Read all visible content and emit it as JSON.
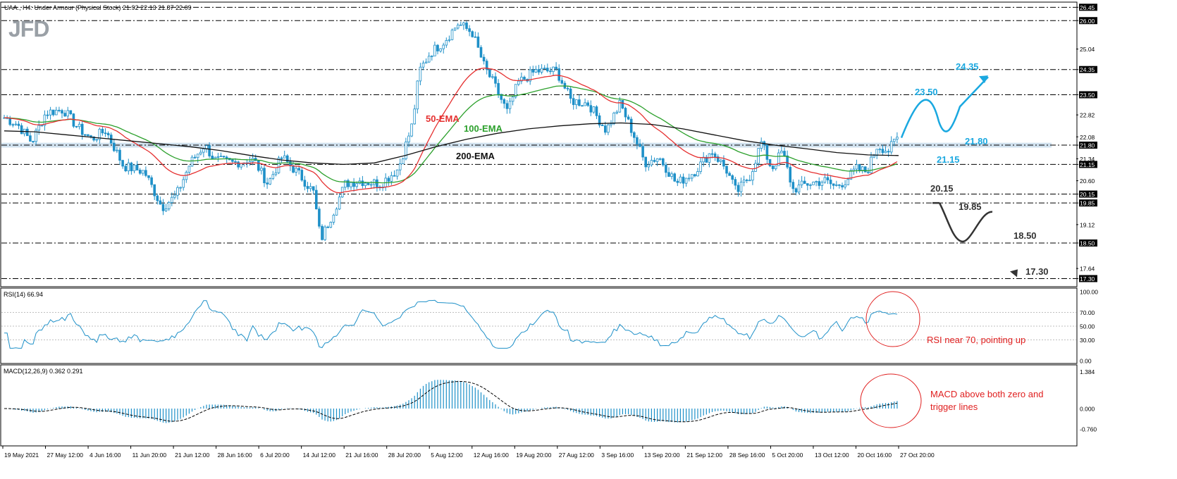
{
  "header": {
    "symbol_line": "UAA., H4:  Under Armour (Physical Stock)  21.92 22.13 21.87 22.09",
    "logo": "JFD"
  },
  "colors": {
    "candle": "#1e90c8",
    "ema50": "#e53030",
    "ema100": "#2ca02c",
    "ema200": "#111111",
    "scenario_up": "#1aa8e0",
    "scenario_down": "#333333",
    "note": "#e02020",
    "band": "#c8dceb"
  },
  "chart_data": [
    {
      "type": "candlestick",
      "name": "price",
      "ylim": [
        17.05,
        26.6
      ],
      "y_ticks": [
        {
          "v": 26.45,
          "t": "26.45"
        },
        {
          "v": 26.0,
          "t": "26.00"
        },
        {
          "v": 25.04,
          "t": "25.04"
        },
        {
          "v": 24.35,
          "t": "24.35"
        },
        {
          "v": 23.5,
          "t": "23.50"
        },
        {
          "v": 22.82,
          "t": "22.82"
        },
        {
          "v": 22.08,
          "t": "22.08"
        },
        {
          "v": 21.8,
          "t": "21.80"
        },
        {
          "v": 21.34,
          "t": "21.34"
        },
        {
          "v": 21.15,
          "t": "21.15"
        },
        {
          "v": 20.6,
          "t": "20.60"
        },
        {
          "v": 20.15,
          "t": "20.15"
        },
        {
          "v": 19.85,
          "t": "19.85"
        },
        {
          "v": 19.12,
          "t": "19.12"
        },
        {
          "v": 18.5,
          "t": "18.50"
        },
        {
          "v": 17.64,
          "t": "17.64"
        },
        {
          "v": 17.3,
          "t": "17.30"
        }
      ],
      "highlight_ticks": [
        "26.45",
        "26.00",
        "24.35",
        "23.50",
        "21.80",
        "21.15",
        "20.15",
        "19.85",
        "18.50",
        "17.30"
      ],
      "levels": [
        26.45,
        26.0,
        24.35,
        23.5,
        21.15,
        20.15,
        19.85,
        18.5,
        17.3
      ],
      "zone": [
        21.72,
        21.88
      ],
      "ema_labels": {
        "ema50": "50-EMA",
        "ema100": "100-EMA",
        "ema200": "200-EMA"
      },
      "ema200_points": [
        [
          0,
          22.28
        ],
        [
          0.05,
          22.25
        ],
        [
          0.1,
          22.15
        ],
        [
          0.15,
          22.05
        ],
        [
          0.2,
          21.95
        ],
        [
          0.25,
          21.85
        ],
        [
          0.3,
          21.75
        ],
        [
          0.35,
          21.62
        ],
        [
          0.4,
          21.45
        ],
        [
          0.45,
          21.3
        ],
        [
          0.5,
          21.2
        ],
        [
          0.55,
          21.15
        ],
        [
          0.6,
          21.2
        ],
        [
          0.65,
          21.45
        ],
        [
          0.7,
          21.75
        ],
        [
          0.75,
          22.0
        ],
        [
          0.8,
          22.2
        ],
        [
          0.85,
          22.35
        ],
        [
          0.9,
          22.45
        ],
        [
          0.95,
          22.52
        ],
        [
          1.0,
          22.55
        ],
        [
          1.05,
          22.5
        ],
        [
          1.1,
          22.35
        ],
        [
          1.15,
          22.15
        ],
        [
          1.2,
          21.95
        ],
        [
          1.25,
          21.8
        ],
        [
          1.3,
          21.68
        ],
        [
          1.35,
          21.55
        ],
        [
          1.4,
          21.47
        ],
        [
          1.45,
          21.45
        ]
      ],
      "scenario_up": {
        "labels": [
          "23.50",
          "24.35",
          "21.80",
          "21.15"
        ]
      },
      "scenario_down": {
        "labels": [
          "20.15",
          "19.85",
          "18.50",
          "17.30"
        ]
      }
    },
    {
      "type": "line",
      "name": "rsi",
      "title": "RSI(14) 66.94",
      "ylim": [
        0,
        100
      ],
      "y_ticks": [
        {
          "v": 100,
          "t": "100.00"
        },
        {
          "v": 70,
          "t": "70.00"
        },
        {
          "v": 50,
          "t": "50.00"
        },
        {
          "v": 30,
          "t": "30.00"
        },
        {
          "v": 0,
          "t": "0.00"
        }
      ],
      "levels": [
        70,
        50,
        30
      ]
    },
    {
      "type": "bar",
      "name": "macd",
      "title": "MACD(12,26,9) 0.362 0.291",
      "ylim": [
        -0.85,
        1.45
      ],
      "y_ticks": [
        {
          "v": 1.384,
          "t": "1.384"
        },
        {
          "v": 0,
          "t": "0.000"
        },
        {
          "v": -0.76,
          "t": "-0.760"
        }
      ]
    }
  ],
  "x_axis": {
    "ticks": [
      "19 May 2021",
      "27 May 12:00",
      "4 Jun 16:00",
      "11 Jun 20:00",
      "21 Jun 12:00",
      "28 Jun 16:00",
      "6 Jul 20:00",
      "14 Jul 12:00",
      "21 Jul 16:00",
      "28 Jul 20:00",
      "5 Aug 12:00",
      "12 Aug 16:00",
      "19 Aug 20:00",
      "27 Aug 12:00",
      "3 Sep 16:00",
      "13 Sep 20:00",
      "21 Sep 12:00",
      "28 Sep 16:00",
      "5 Oct 20:00",
      "13 Oct 12:00",
      "20 Oct 16:00",
      "27 Oct 20:00"
    ]
  },
  "annotations": {
    "rsi_note": "RSI near 70, pointing up",
    "macd_note_1": "MACD above both zero and",
    "macd_note_2": "trigger lines"
  }
}
